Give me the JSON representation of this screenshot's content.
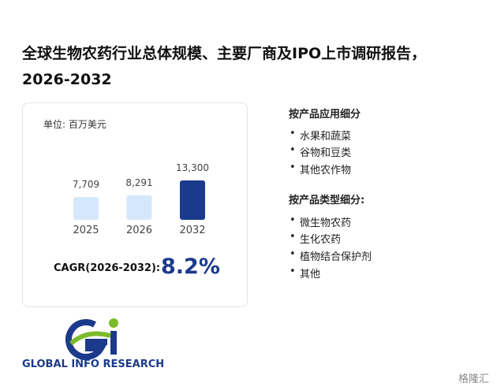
{
  "chart_data": {
    "type": "bar",
    "title": "全球生物农药行业总体规模、主要厂商及IPO上市调研报告，2026-2032",
    "unit": "单位: 百万美元",
    "categories": [
      "2025",
      "2026",
      "2032"
    ],
    "values": [
      7709,
      8291,
      13300
    ],
    "value_labels": [
      "7,709",
      "8,291",
      "13,300"
    ],
    "colors": [
      "#d5e8fb",
      "#d5e8fb",
      "#1b3a8c"
    ]
  },
  "cagr": {
    "label": "CAGR(2026-2032):",
    "value": "8.2%"
  },
  "segments": [
    {
      "heading": "按产品应用细分",
      "items": [
        "水果和蔬菜",
        "谷物和豆类",
        "其他农作物"
      ]
    },
    {
      "heading": "按产品类型细分:",
      "items": [
        "微生物农药",
        "生化农药",
        "植物结合保护剂",
        "其他"
      ]
    }
  ],
  "logo_text": "GLOBAL INFO RESEARCH",
  "watermark": "格隆汇"
}
